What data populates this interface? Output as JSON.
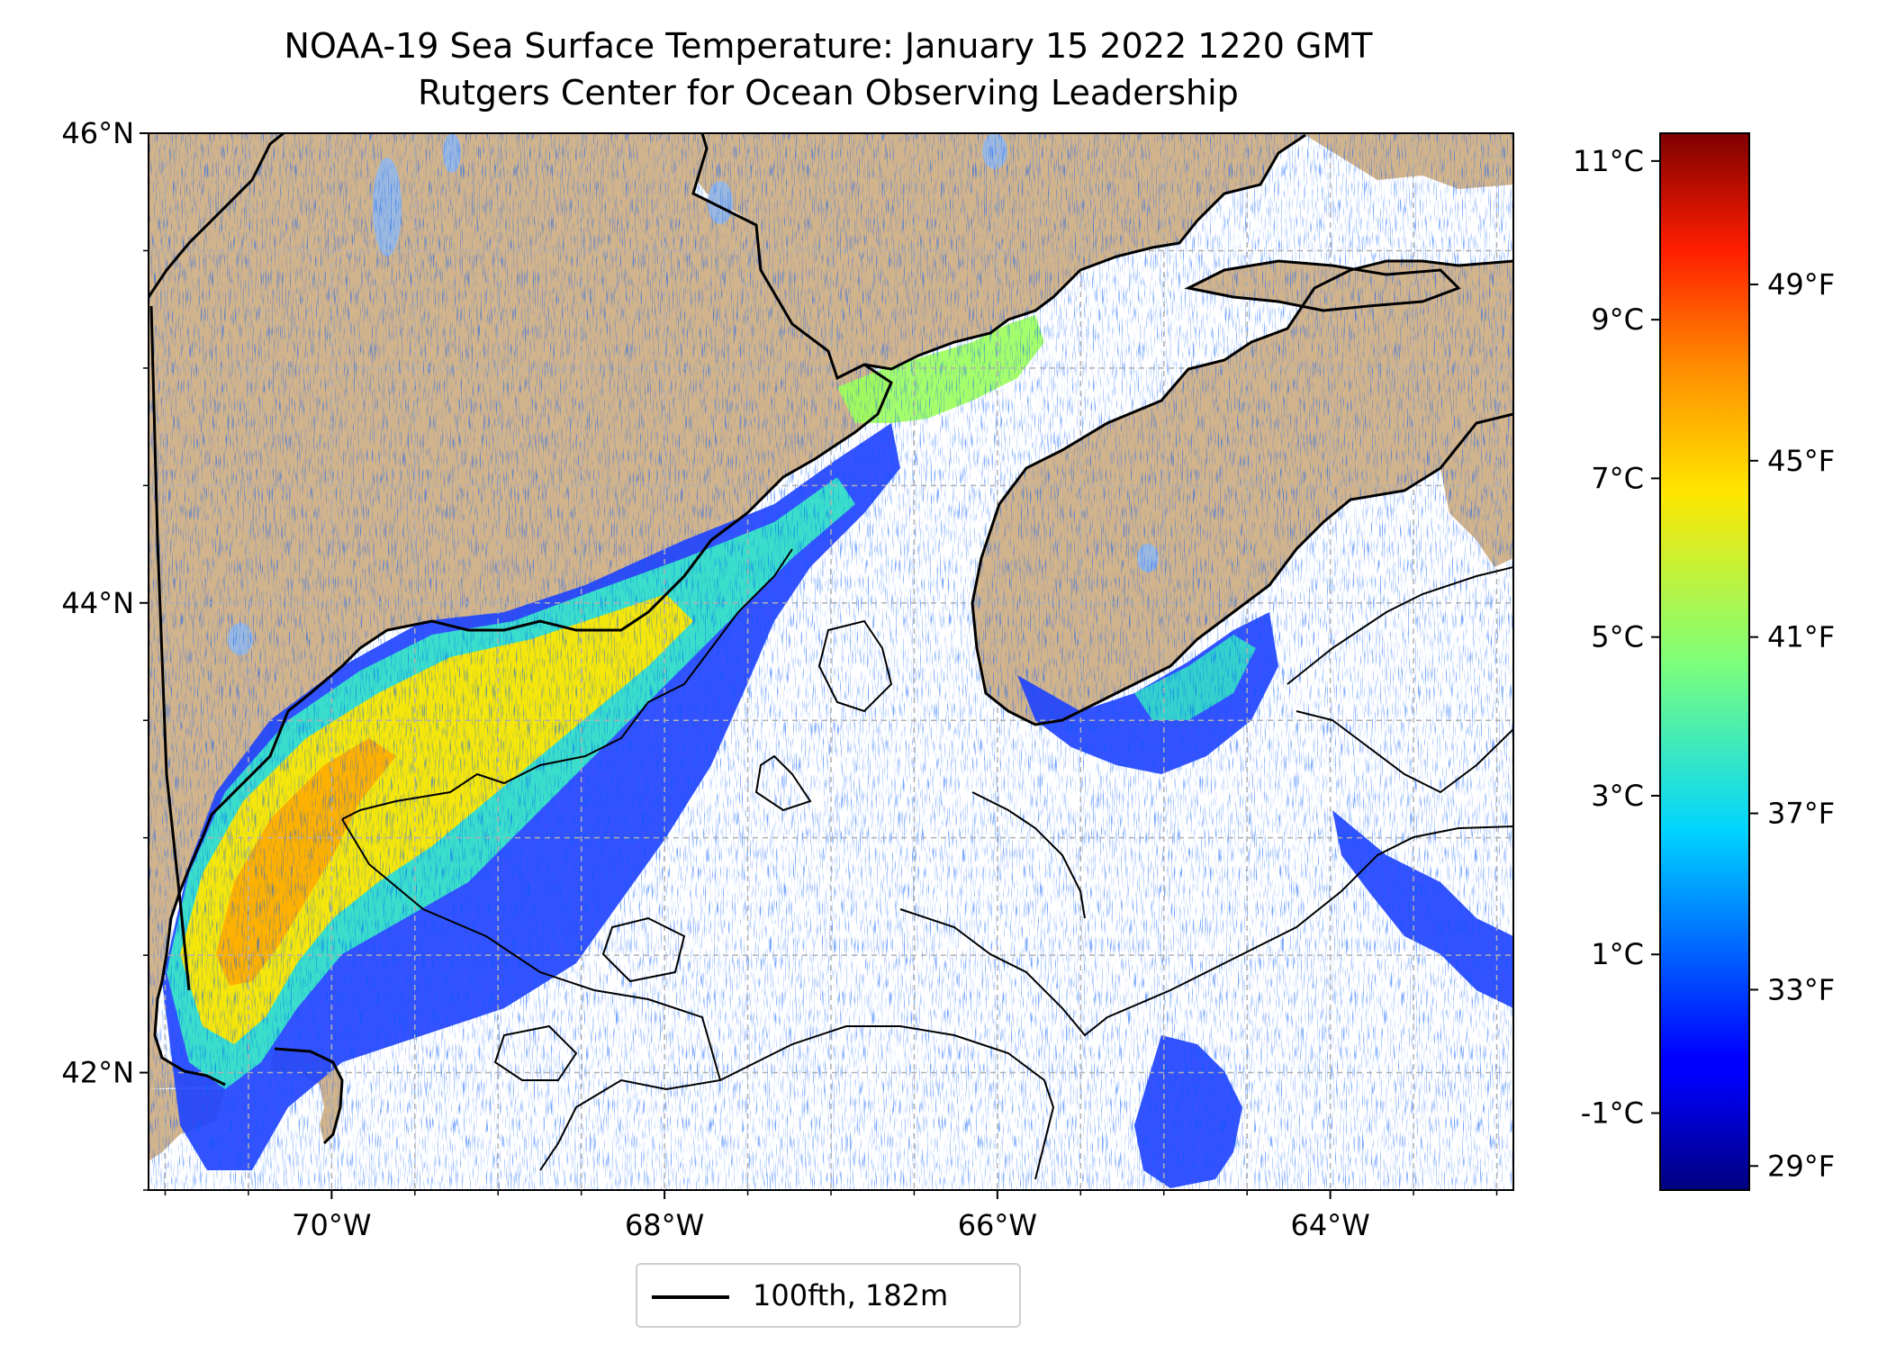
{
  "title": {
    "line1": "NOAA-19 Sea Surface Temperature: January 15 2022 1220 GMT",
    "line2": "Rutgers Center for Ocean Observing Leadership"
  },
  "map": {
    "lon_range": [
      -71.1,
      -62.9
    ],
    "lat_range": [
      41.5,
      46.0
    ],
    "lat_ticks": [
      {
        "value": 46,
        "label": "46°N"
      },
      {
        "value": 44,
        "label": "44°N"
      },
      {
        "value": 42,
        "label": "42°N"
      }
    ],
    "lon_ticks": [
      {
        "value": -70,
        "label": "70°W"
      },
      {
        "value": -68,
        "label": "68°W"
      },
      {
        "value": -66,
        "label": "66°W"
      },
      {
        "value": -64,
        "label": "64°W"
      }
    ],
    "gridlines": true,
    "colors": {
      "land": "#d2b48c",
      "lakes": "#9ab8e0",
      "ocean": "#ffffff",
      "grid": "#b0b0b0"
    }
  },
  "colorbar": {
    "colormap": "jet",
    "celsius_range": [
      -1.97,
      11.35
    ],
    "celsius_ticks": [
      {
        "value": 11,
        "label": "11°C"
      },
      {
        "value": 9,
        "label": "9°C"
      },
      {
        "value": 7,
        "label": "7°C"
      },
      {
        "value": 5,
        "label": "5°C"
      },
      {
        "value": 3,
        "label": "3°C"
      },
      {
        "value": 1,
        "label": "1°C"
      },
      {
        "value": -1,
        "label": "-1°C"
      }
    ],
    "fahrenheit_ticks": [
      {
        "value": 49,
        "label": "49°F"
      },
      {
        "value": 45,
        "label": "45°F"
      },
      {
        "value": 41,
        "label": "41°F"
      },
      {
        "value": 37,
        "label": "37°F"
      },
      {
        "value": 33,
        "label": "33°F"
      },
      {
        "value": 29,
        "label": "29°F"
      }
    ]
  },
  "legend": {
    "label": "100fth, 182m",
    "placement": "bottom-center"
  }
}
